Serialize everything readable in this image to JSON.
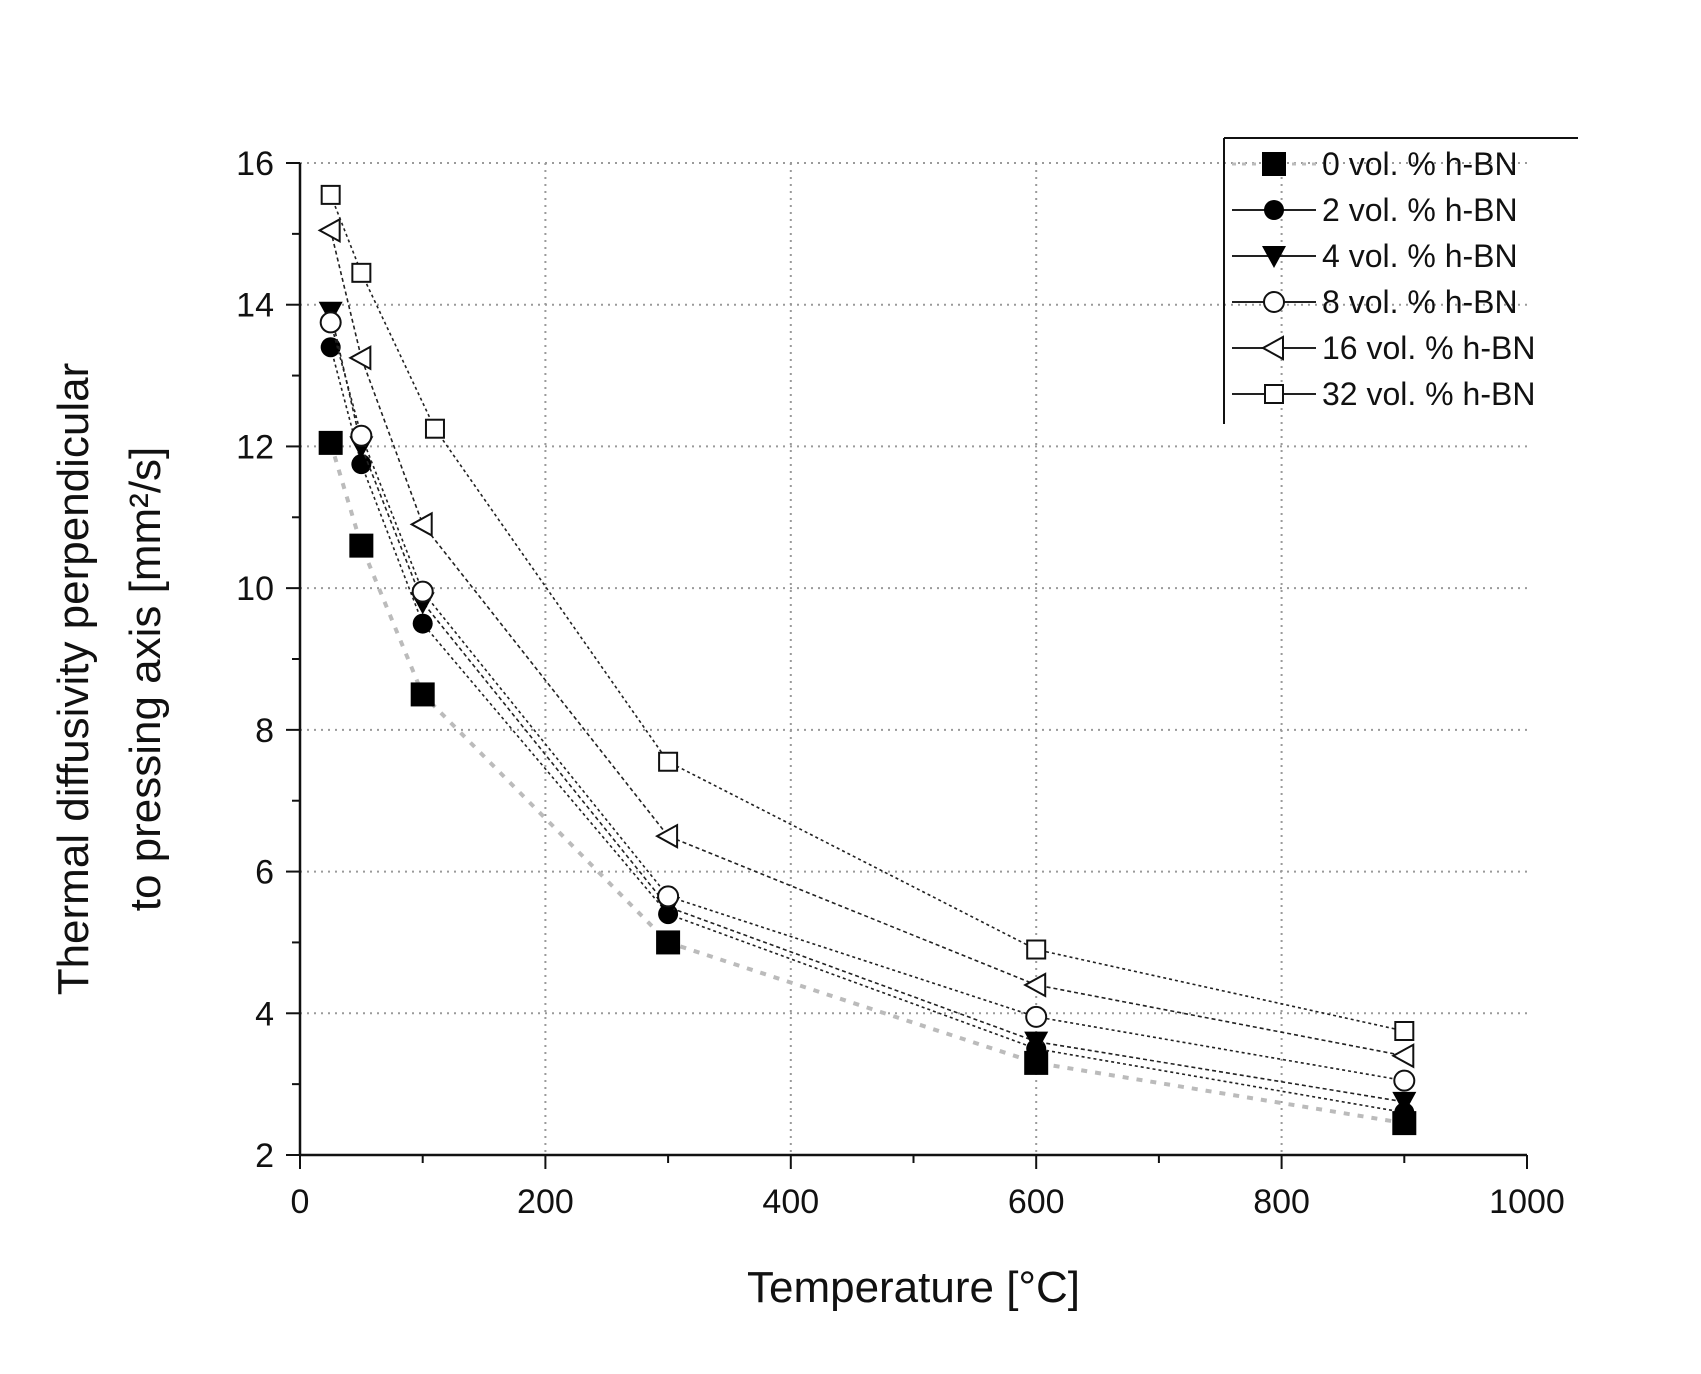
{
  "chart_data": {
    "type": "line",
    "title": "",
    "xlabel": "Temperature [°C]",
    "ylabel_line1": "Thermal diffusivity perpendicular",
    "ylabel_line2": "to pressing axis [mm²/s]",
    "xlim": [
      0,
      1000
    ],
    "ylim": [
      2,
      16
    ],
    "xticks": [
      0,
      200,
      400,
      600,
      800,
      1000
    ],
    "yticks": [
      2,
      4,
      6,
      8,
      10,
      12,
      14,
      16
    ],
    "grid": true,
    "legend_position": "top-right",
    "series": [
      {
        "name": "0 vol. % h-BN",
        "marker": "square-filled",
        "line_color": "#bbbbbb",
        "x": [
          25,
          50,
          100,
          300,
          600,
          900
        ],
        "y": [
          12.05,
          10.6,
          8.5,
          5.0,
          3.3,
          2.45
        ]
      },
      {
        "name": "2 vol. % h-BN",
        "marker": "circle-filled",
        "line_color": "#222222",
        "x": [
          25,
          50,
          100,
          300,
          600,
          900
        ],
        "y": [
          13.4,
          11.75,
          9.5,
          5.4,
          3.5,
          2.6
        ]
      },
      {
        "name": "4 vol. % h-BN",
        "marker": "triangle-down-filled",
        "line_color": "#222222",
        "x": [
          25,
          50,
          100,
          300,
          600,
          900
        ],
        "y": [
          13.9,
          12.0,
          9.8,
          5.5,
          3.6,
          2.75
        ]
      },
      {
        "name": "8 vol. % h-BN",
        "marker": "circle-open",
        "line_color": "#222222",
        "x": [
          25,
          50,
          100,
          300,
          600,
          900
        ],
        "y": [
          13.75,
          12.15,
          9.95,
          5.65,
          3.95,
          3.05
        ]
      },
      {
        "name": "16 vol. % h-BN",
        "marker": "triangle-left-open",
        "line_color": "#222222",
        "x": [
          25,
          50,
          100,
          300,
          600,
          900
        ],
        "y": [
          15.05,
          13.25,
          10.9,
          6.5,
          4.4,
          3.4
        ]
      },
      {
        "name": "32 vol. % h-BN",
        "marker": "square-open",
        "line_color": "#222222",
        "x": [
          25,
          50,
          110,
          300,
          600,
          900
        ],
        "y": [
          15.55,
          14.45,
          12.25,
          7.55,
          4.9,
          3.75
        ]
      }
    ]
  }
}
